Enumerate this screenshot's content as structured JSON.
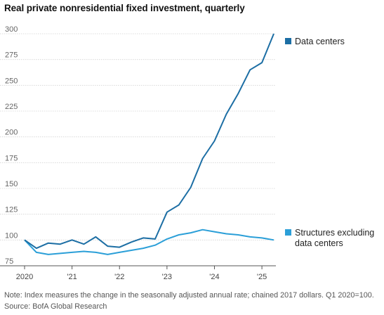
{
  "chart_data": {
    "type": "line",
    "title": "Real private nonresidential fixed investment, quarterly",
    "xlabel": "",
    "ylabel": "",
    "ylim": [
      75,
      300
    ],
    "yticks": [
      75,
      100,
      125,
      150,
      175,
      200,
      225,
      250,
      275,
      300
    ],
    "x_tick_labels": [
      "2020",
      "'21",
      "'22",
      "'23",
      "'24",
      "'25"
    ],
    "x": [
      "2020Q1",
      "2020Q2",
      "2020Q3",
      "2020Q4",
      "2021Q1",
      "2021Q2",
      "2021Q3",
      "2021Q4",
      "2022Q1",
      "2022Q2",
      "2022Q3",
      "2022Q4",
      "2023Q1",
      "2023Q2",
      "2023Q3",
      "2023Q4",
      "2024Q1",
      "2024Q2",
      "2024Q3",
      "2024Q4",
      "2025Q1",
      "2025Q2"
    ],
    "grid": true,
    "series": [
      {
        "name": "Data centers",
        "color": "#1c6ea4",
        "values": [
          100,
          92,
          97,
          96,
          100,
          96,
          103,
          94,
          93,
          98,
          102,
          101,
          127,
          134,
          151,
          179,
          196,
          222,
          242,
          265,
          272,
          300
        ]
      },
      {
        "name": "Structures excluding data centers",
        "color": "#2b9fd8",
        "values": [
          100,
          88,
          86,
          87,
          88,
          89,
          88,
          86,
          88,
          90,
          92,
          95,
          101,
          105,
          107,
          110,
          108,
          106,
          105,
          103,
          102,
          100
        ]
      }
    ]
  },
  "footer": {
    "note": "Note: Index measures the change in the seasonally adjusted annual rate; chained 2017 dollars. Q1 2020=100.",
    "source": "Source: BofA Global Research"
  }
}
